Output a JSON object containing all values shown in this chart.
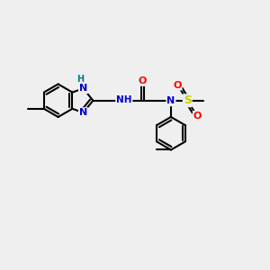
{
  "background_color": "#efefef",
  "atom_colors": {
    "C": "#000000",
    "N": "#0000cc",
    "O": "#ff0000",
    "S": "#cccc00",
    "H": "#008080"
  },
  "bond_color": "#000000",
  "bond_width": 1.5,
  "figsize": [
    3.0,
    3.0
  ],
  "dpi": 100
}
